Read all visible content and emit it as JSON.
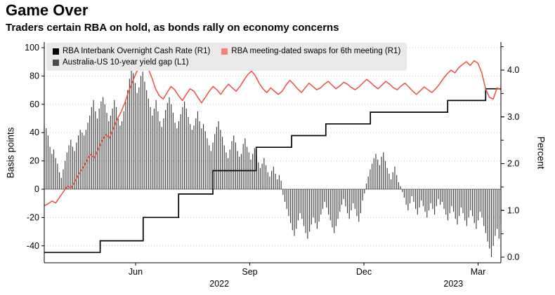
{
  "header": {
    "title": "Game Over",
    "subtitle": "Traders certain RBA on hold, as bonds rally on economy concerns"
  },
  "legend_rows": [
    [
      {
        "label": "RBA Interbank Overnight Cash Rate (R1)",
        "swatch": "#000000"
      },
      {
        "label": "RBA meeting-dated swaps for 6th meeting (R1)",
        "swatch": "#f2837a"
      }
    ],
    [
      {
        "label": "Australia-US 10-year yield gap (L1)",
        "swatch": "#4d4d4d"
      }
    ]
  ],
  "chart_data": {
    "type": "mixed",
    "title": "Game Over",
    "subtitle": "Traders certain RBA on hold, as bonds rally on economy concerns",
    "x_axis": {
      "domain": [
        -0.4,
        11.6
      ],
      "unit": "months since Apr 2022",
      "ticks": [
        {
          "pos": 2,
          "label": "Jun"
        },
        {
          "pos": 5,
          "label": "Sep"
        },
        {
          "pos": 8,
          "label": "Dec"
        },
        {
          "pos": 11,
          "label": "Mar"
        }
      ],
      "year_labels": [
        {
          "pos": 4.2,
          "label": "2022"
        },
        {
          "pos": 10.35,
          "label": "2023"
        }
      ]
    },
    "left_axis": {
      "label": "Basis points",
      "range": [
        -52,
        104
      ],
      "ticks": [
        100,
        80,
        60,
        40,
        20,
        0,
        -20,
        -40
      ]
    },
    "right_axis": {
      "label": "Percent",
      "range": [
        -0.12,
        4.6
      ],
      "ticks": [
        4.0,
        3.0,
        2.0,
        1.0,
        0.0
      ],
      "minor_step": 0.5
    },
    "grid": {
      "on": true,
      "color": "#c8c8c8"
    },
    "series": [
      {
        "name": "Australia-US 10-year yield gap (L1)",
        "type": "bar",
        "axis": "left",
        "color": "#3d3d3d",
        "values": [
          45,
          43,
          38,
          30,
          25,
          28,
          22,
          18,
          12,
          8,
          14,
          20,
          26,
          31,
          35,
          30,
          27,
          33,
          38,
          42,
          40,
          38,
          42,
          47,
          52,
          58,
          63,
          55,
          50,
          57,
          62,
          65,
          60,
          54,
          48,
          52,
          57,
          63,
          58,
          50,
          45,
          48,
          55,
          62,
          70,
          78,
          85,
          82,
          75,
          68,
          72,
          80,
          83,
          76,
          70,
          64,
          58,
          52,
          57,
          63,
          55,
          48,
          44,
          50,
          56,
          61,
          65,
          60,
          54,
          47,
          43,
          48,
          53,
          58,
          62,
          57,
          51,
          46,
          42,
          45,
          50,
          55,
          48,
          43,
          46,
          41,
          36,
          31,
          27,
          33,
          39,
          44,
          48,
          42,
          37,
          31,
          26,
          22,
          28,
          34,
          38,
          33,
          27,
          23,
          25,
          32,
          36,
          30,
          26,
          21,
          25,
          29,
          24,
          19,
          15,
          18,
          22,
          17,
          12,
          9,
          13,
          16,
          11,
          7,
          10,
          6,
          -4,
          -9,
          -14,
          -19,
          -24,
          -29,
          -33,
          -28,
          -22,
          -17,
          -21,
          -26,
          -31,
          -35,
          -30,
          -25,
          -20,
          -24,
          -28,
          -23,
          -18,
          -14,
          -9,
          -13,
          -18,
          -22,
          -27,
          -31,
          -26,
          -21,
          -16,
          -11,
          -7,
          -12,
          -17,
          -21,
          -15,
          -10,
          -14,
          -19,
          -23,
          -17,
          -8,
          -3,
          4,
          9,
          14,
          18,
          22,
          25,
          21,
          17,
          23,
          26,
          20,
          15,
          11,
          7,
          12,
          16,
          10,
          5,
          2,
          -2,
          -6,
          -11,
          -15,
          -10,
          -5,
          -9,
          -14,
          -18,
          -13,
          -8,
          -12,
          -16,
          -20,
          -15,
          -10,
          -14,
          -18,
          -12,
          -7,
          -11,
          -9,
          -14,
          -18,
          -22,
          -17,
          -12,
          -16,
          -21,
          -25,
          -19,
          -13,
          -17,
          -22,
          -26,
          -20,
          -15,
          -19,
          -24,
          -28,
          -22,
          -16,
          -20,
          -26,
          -31,
          -37,
          -42,
          -48,
          -40,
          -33,
          -28,
          -35,
          -25
        ]
      },
      {
        "name": "RBA meeting-dated swaps for 6th meeting (R1)",
        "type": "line",
        "axis": "right",
        "color": "#e8594b",
        "values": [
          1.1,
          1.14,
          1.2,
          1.16,
          1.28,
          1.4,
          1.52,
          1.48,
          1.62,
          1.78,
          1.9,
          2.05,
          2.2,
          2.12,
          2.3,
          2.48,
          2.62,
          2.55,
          2.75,
          2.95,
          3.1,
          3.3,
          3.55,
          3.75,
          3.95,
          4.1,
          4.2,
          4.05,
          3.85,
          3.6,
          3.45,
          3.38,
          3.52,
          3.65,
          3.58,
          3.45,
          3.35,
          3.48,
          3.6,
          3.55,
          3.42,
          3.3,
          3.42,
          3.55,
          3.65,
          3.58,
          3.48,
          3.6,
          3.7,
          3.62,
          3.55,
          3.65,
          3.78,
          3.9,
          3.98,
          3.88,
          3.72,
          3.6,
          3.52,
          3.62,
          3.55,
          3.48,
          3.55,
          3.68,
          3.78,
          3.7,
          3.6,
          3.52,
          3.62,
          3.72,
          3.65,
          3.58,
          3.62,
          3.7,
          3.76,
          3.68,
          3.6,
          3.66,
          3.74,
          3.7,
          3.63,
          3.58,
          3.64,
          3.72,
          3.8,
          3.74,
          3.66,
          3.6,
          3.68,
          3.76,
          3.7,
          3.62,
          3.58,
          3.66,
          3.72,
          3.64,
          3.55,
          3.48,
          3.56,
          3.64,
          3.58,
          3.52,
          3.6,
          3.7,
          3.82,
          3.92,
          4.0,
          3.94,
          4.05,
          4.12,
          4.18,
          4.1,
          4.2,
          4.15,
          3.95,
          3.6,
          3.42,
          3.38,
          3.62,
          3.58
        ]
      },
      {
        "name": "RBA Interbank Overnight Cash Rate (R1)",
        "type": "step",
        "axis": "right",
        "color": "#000000",
        "points": [
          [
            -0.4,
            0.1
          ],
          [
            1.07,
            0.35
          ],
          [
            2.2,
            0.85
          ],
          [
            3.13,
            1.35
          ],
          [
            4.03,
            1.85
          ],
          [
            5.17,
            2.35
          ],
          [
            6.1,
            2.6
          ],
          [
            7.0,
            2.85
          ],
          [
            8.17,
            3.1
          ],
          [
            10.2,
            3.35
          ],
          [
            11.2,
            3.6
          ]
        ]
      }
    ]
  }
}
